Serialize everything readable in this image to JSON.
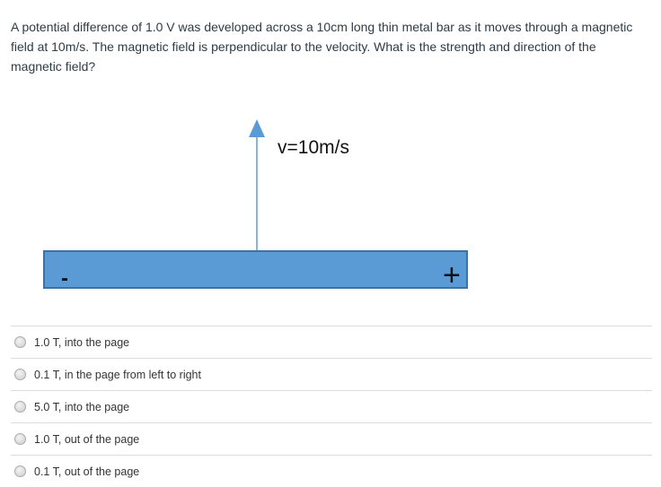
{
  "question": "A potential difference of 1.0 V was developed across a 10cm long thin metal bar as it moves through a magnetic field at 10m/s. The magnetic field is perpendicular to the velocity. What is the strength and direction of the magnetic field?",
  "figure": {
    "velocity_label": "v=10m/s",
    "minus_label": "-",
    "plus_label": "+",
    "bar_color": "#5b9bd5",
    "bar_border": "#41719c"
  },
  "options": [
    {
      "label": "1.0 T, into the page"
    },
    {
      "label": "0.1 T, in the page from left to right"
    },
    {
      "label": "5.0 T, into the page"
    },
    {
      "label": "1.0 T, out of the page"
    },
    {
      "label": "0.1 T, out of the page"
    }
  ]
}
